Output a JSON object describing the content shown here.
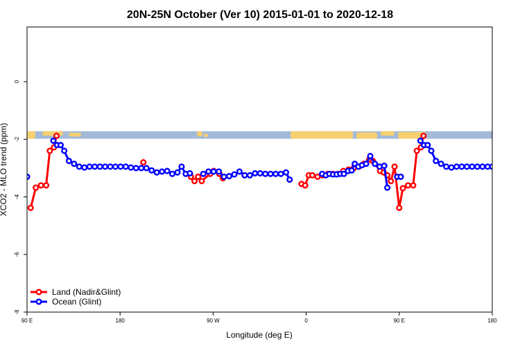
{
  "chart_data": {
    "type": "line",
    "title": "20N-25N October (Ver 10)   2015-01-01 to 2020-12-18",
    "xlabel": "Longitude (deg E)",
    "ylabel": "XCO2 - MLO trend (ppm)",
    "xlim": [
      -270,
      -180
    ],
    "ylim": [
      -8.0,
      1.9
    ],
    "x_ticks": [
      {
        "x": -270,
        "label": "90 E"
      },
      {
        "x": -252,
        "label": "180"
      },
      {
        "x": -234,
        "label": "90 W"
      },
      {
        "x": -216,
        "label": "0"
      },
      {
        "x": -198,
        "label": "90 E"
      },
      {
        "x": -180,
        "label": "180"
      }
    ],
    "y_ticks": [
      {
        "y": 0,
        "label": "0"
      },
      {
        "y": -2,
        "label": "-2"
      },
      {
        "y": -4,
        "label": "-4"
      },
      {
        "y": -6,
        "label": "-6"
      },
      {
        "y": -8,
        "label": "-8"
      }
    ],
    "grid": false,
    "legend_position": "bottom-left",
    "map_strip": {
      "y_top": -1.72,
      "y_bottom": -1.98,
      "ocean_color": "#a3b9d8",
      "land_color": "#f6d070"
    },
    "series": [
      {
        "name": "Land (Nadir&Glint)",
        "color": "#ff0000",
        "points": [
          [
            -269.3,
            -4.38
          ],
          [
            -268.3,
            -3.68
          ],
          [
            -267.3,
            -3.6
          ],
          [
            -266.3,
            -3.6
          ],
          [
            -265.6,
            -2.4
          ],
          [
            -264.8,
            -2.28
          ],
          [
            -264.3,
            -1.88
          ],
          [
            -247.5,
            -2.8
          ],
          [
            -238.3,
            -3.3
          ],
          [
            -237.6,
            -3.45
          ],
          [
            -236.9,
            -3.3
          ],
          [
            -236.2,
            -3.45
          ],
          [
            -234.6,
            -3.2
          ],
          [
            -233.9,
            -3.1
          ],
          [
            -232.8,
            -3.2
          ],
          [
            -232.1,
            -3.35
          ],
          [
            -216.9,
            -3.55
          ],
          [
            -216.2,
            -3.6
          ],
          [
            -215.5,
            -3.25
          ],
          [
            -214.8,
            -3.25
          ],
          [
            -213.8,
            -3.3
          ],
          [
            -212.8,
            -3.25
          ],
          [
            -211.8,
            -3.2
          ],
          [
            -210.8,
            -3.2
          ],
          [
            -209.8,
            -3.2
          ],
          [
            -208.8,
            -3.1
          ],
          [
            -207.8,
            -3.05
          ],
          [
            -206.8,
            -3.0
          ],
          [
            -205.8,
            -2.95
          ],
          [
            -204.8,
            -2.85
          ],
          [
            -203.8,
            -2.7
          ],
          [
            -203.1,
            -2.75
          ],
          [
            -201.7,
            -3.1
          ],
          [
            -201.0,
            -3.15
          ],
          [
            -200.3,
            -3.25
          ],
          [
            -199.6,
            -3.45
          ],
          [
            -198.9,
            -2.95
          ],
          [
            -198.0,
            -4.38
          ],
          [
            -197.3,
            -3.7
          ],
          [
            -196.3,
            -3.6
          ],
          [
            -195.3,
            -3.6
          ],
          [
            -194.6,
            -2.4
          ],
          [
            -193.8,
            -2.28
          ],
          [
            -193.3,
            -1.88
          ]
        ]
      },
      {
        "name": "Ocean (Glint)",
        "color": "#0000ff",
        "points": [
          [
            -270.0,
            -3.3
          ],
          [
            -264.9,
            -2.05
          ],
          [
            -264.2,
            -2.2
          ],
          [
            -263.5,
            -2.2
          ],
          [
            -262.8,
            -2.4
          ],
          [
            -261.9,
            -2.75
          ],
          [
            -260.9,
            -2.85
          ],
          [
            -259.9,
            -2.95
          ],
          [
            -258.9,
            -2.98
          ],
          [
            -257.9,
            -2.95
          ],
          [
            -256.9,
            -2.95
          ],
          [
            -255.9,
            -2.95
          ],
          [
            -254.9,
            -2.95
          ],
          [
            -253.9,
            -2.95
          ],
          [
            -252.9,
            -2.95
          ],
          [
            -251.9,
            -2.95
          ],
          [
            -250.9,
            -2.95
          ],
          [
            -249.9,
            -2.98
          ],
          [
            -248.9,
            -3.0
          ],
          [
            -247.9,
            -3.0
          ],
          [
            -246.9,
            -3.0
          ],
          [
            -245.9,
            -3.08
          ],
          [
            -244.9,
            -3.15
          ],
          [
            -243.9,
            -3.12
          ],
          [
            -242.9,
            -3.1
          ],
          [
            -241.9,
            -3.2
          ],
          [
            -240.9,
            -3.15
          ],
          [
            -240.1,
            -2.95
          ],
          [
            -239.3,
            -3.2
          ],
          [
            -238.5,
            -3.18
          ],
          [
            -235.9,
            -3.2
          ],
          [
            -234.9,
            -3.12
          ],
          [
            -233.9,
            -3.12
          ],
          [
            -232.9,
            -3.12
          ],
          [
            -231.9,
            -3.3
          ],
          [
            -230.9,
            -3.28
          ],
          [
            -229.9,
            -3.22
          ],
          [
            -228.9,
            -3.12
          ],
          [
            -227.9,
            -3.25
          ],
          [
            -226.9,
            -3.25
          ],
          [
            -225.9,
            -3.18
          ],
          [
            -224.9,
            -3.18
          ],
          [
            -223.9,
            -3.2
          ],
          [
            -222.9,
            -3.2
          ],
          [
            -221.9,
            -3.2
          ],
          [
            -220.9,
            -3.2
          ],
          [
            -219.9,
            -3.15
          ],
          [
            -219.2,
            -3.4
          ],
          [
            -212.9,
            -3.2
          ],
          [
            -212.2,
            -3.25
          ],
          [
            -211.5,
            -3.2
          ],
          [
            -210.8,
            -3.22
          ],
          [
            -210.1,
            -3.22
          ],
          [
            -209.4,
            -3.2
          ],
          [
            -208.7,
            -3.2
          ],
          [
            -207.9,
            -3.1
          ],
          [
            -207.2,
            -3.08
          ],
          [
            -206.6,
            -2.85
          ],
          [
            -205.9,
            -2.95
          ],
          [
            -205.2,
            -2.9
          ],
          [
            -204.4,
            -2.85
          ],
          [
            -203.6,
            -2.58
          ],
          [
            -202.7,
            -2.85
          ],
          [
            -201.8,
            -2.95
          ],
          [
            -200.9,
            -2.92
          ],
          [
            -200.3,
            -3.68
          ],
          [
            -198.4,
            -3.3
          ],
          [
            -197.7,
            -3.3
          ],
          [
            -193.9,
            -2.05
          ],
          [
            -193.2,
            -2.2
          ],
          [
            -192.5,
            -2.2
          ],
          [
            -191.8,
            -2.4
          ],
          [
            -190.9,
            -2.75
          ],
          [
            -189.9,
            -2.85
          ],
          [
            -188.9,
            -2.95
          ],
          [
            -187.9,
            -2.98
          ],
          [
            -186.9,
            -2.95
          ],
          [
            -185.9,
            -2.95
          ],
          [
            -184.9,
            -2.95
          ],
          [
            -183.9,
            -2.95
          ],
          [
            -182.9,
            -2.95
          ],
          [
            -181.9,
            -2.95
          ],
          [
            -180.9,
            -2.95
          ],
          [
            -180.0,
            -2.95
          ]
        ]
      }
    ]
  }
}
